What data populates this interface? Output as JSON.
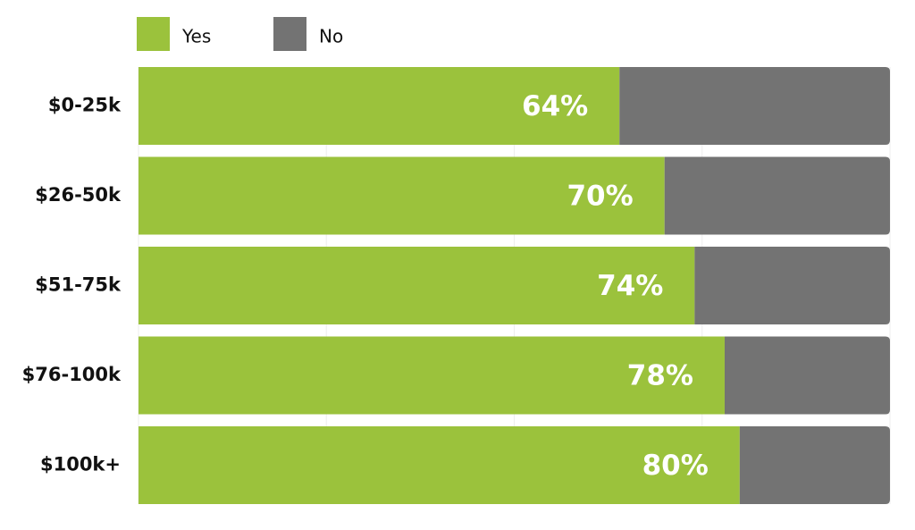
{
  "chart_data": {
    "type": "stacked-bar-horizontal",
    "categories": [
      "$0-25k",
      "$26-50k",
      "$51-75k",
      "$76-100k",
      "$100k+"
    ],
    "series": [
      {
        "name": "Yes",
        "color": "#9bc23c",
        "values": [
          64,
          70,
          74,
          78,
          80
        ],
        "value_labels": [
          "64%",
          "70%",
          "74%",
          "78%",
          "80%"
        ]
      },
      {
        "name": "No",
        "color": "#737373",
        "values": [
          36,
          30,
          26,
          22,
          20
        ]
      }
    ],
    "xlim": [
      0,
      100
    ],
    "xticks": [
      0,
      25,
      50,
      75,
      100
    ],
    "grid": true,
    "legend": "top-left"
  }
}
